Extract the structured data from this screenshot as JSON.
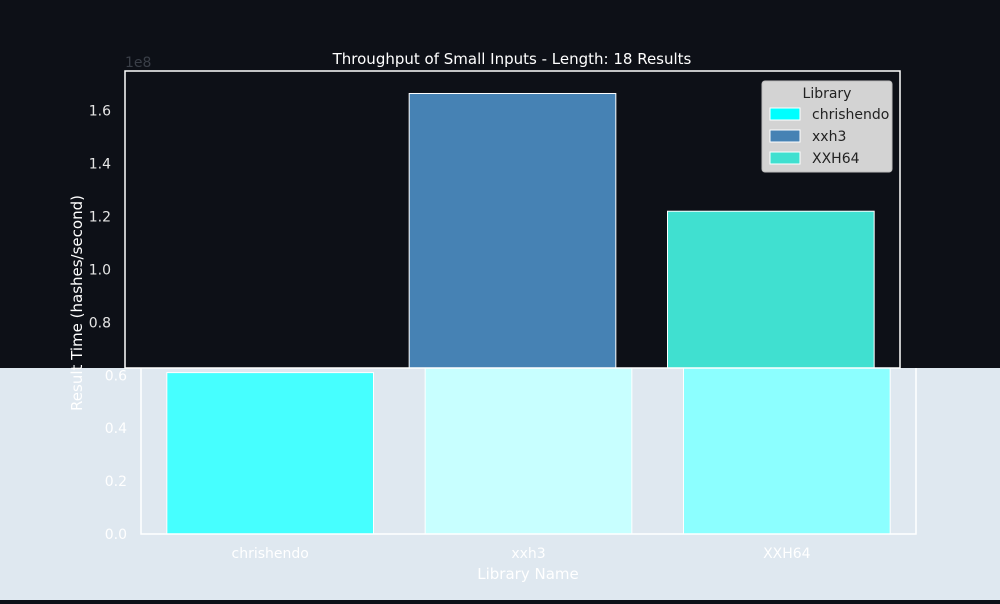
{
  "chart_data": {
    "type": "bar",
    "title": "Throughput of Small Inputs - Length: 18 Results",
    "xlabel": "Library Name",
    "ylabel": "Result Time (hashes/second)",
    "categories": [
      "chrishendo",
      "xxh3",
      "XXH64"
    ],
    "values": [
      61000000,
      166500000,
      122000000
    ],
    "ylim": [
      0,
      175000000
    ],
    "yticks": [
      0,
      0.2,
      0.4,
      0.6,
      0.8,
      1.0,
      1.2,
      1.4,
      1.6
    ],
    "ytick_labels": [
      "0.0",
      "0.2",
      "0.4",
      "0.6",
      "0.8",
      "1.0",
      "1.2",
      "1.4",
      "1.6"
    ],
    "y_offset_label": "1e8",
    "grid": false,
    "legend": {
      "title": "Library",
      "placement": "top-right",
      "entries": [
        "chrishendo",
        "xxh3",
        "XXH64"
      ]
    },
    "colors": {
      "chrishendo": "#00ffff",
      "xxh3": "#4682b4",
      "XXH64": "#40e0d0"
    }
  }
}
